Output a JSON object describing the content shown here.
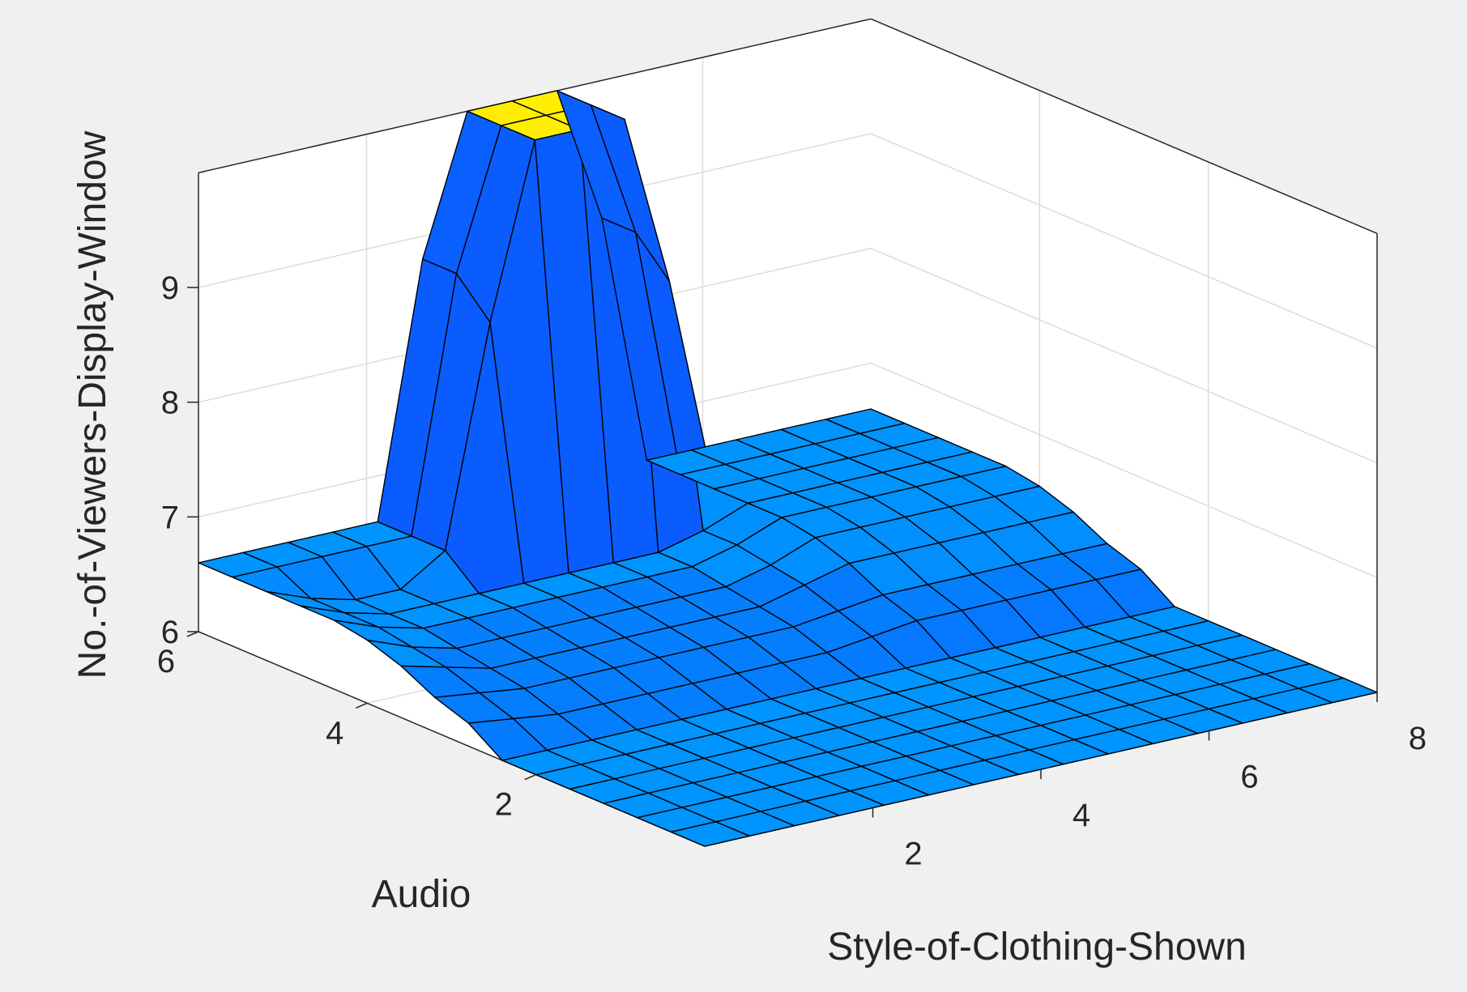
{
  "chart_data": {
    "type": "surface",
    "title": "",
    "xlabel": "Style-of-Clothing-Shown",
    "ylabel": "Audio",
    "zlabel": "No.-of-Viewers-Display-Window",
    "xlim": [
      0,
      8
    ],
    "ylim": [
      0,
      6
    ],
    "zlim": [
      6,
      10
    ],
    "x_ticks": [
      "2",
      "4",
      "6",
      "8"
    ],
    "y_ticks": [
      "2",
      "4",
      "6"
    ],
    "z_ticks": [
      "6",
      "7",
      "8",
      "9"
    ],
    "grid": true,
    "x": [
      0,
      0.533,
      1.067,
      1.6,
      2.133,
      2.667,
      3.2,
      3.733,
      4.267,
      4.8,
      5.333,
      5.867,
      6.4,
      6.933,
      7.467,
      8
    ],
    "y": [
      0,
      0.4,
      0.8,
      1.2,
      1.6,
      2.0,
      2.4,
      2.8,
      3.2,
      3.6,
      4.0,
      4.4,
      4.8,
      5.2,
      5.6,
      6.0
    ],
    "z": [
      [
        6.0,
        6.0,
        6.0,
        6.0,
        6.0,
        6.0,
        6.0,
        6.0,
        6.0,
        6.0,
        6.0,
        6.0,
        6.0,
        6.0,
        6.0,
        6.0
      ],
      [
        6.0,
        6.0,
        6.0,
        6.0,
        6.0,
        6.0,
        6.0,
        6.0,
        6.0,
        6.0,
        6.0,
        6.0,
        6.0,
        6.0,
        6.0,
        6.0
      ],
      [
        6.0,
        6.0,
        6.0,
        6.0,
        6.0,
        6.0,
        6.0,
        6.0,
        6.0,
        6.0,
        6.0,
        6.0,
        6.0,
        6.0,
        6.0,
        6.0
      ],
      [
        6.0,
        6.0,
        6.0,
        6.0,
        6.0,
        6.0,
        6.0,
        6.0,
        6.0,
        6.0,
        6.0,
        6.0,
        6.0,
        6.0,
        6.0,
        6.0
      ],
      [
        6.0,
        6.0,
        6.0,
        6.0,
        6.0,
        6.0,
        6.0,
        6.0,
        6.0,
        6.0,
        6.0,
        6.0,
        6.0,
        6.0,
        6.0,
        6.0
      ],
      [
        6.0,
        6.0,
        6.0,
        6.0,
        6.0,
        6.0,
        6.0,
        6.0,
        6.0,
        6.0,
        6.0,
        6.0,
        6.0,
        6.0,
        6.0,
        6.0
      ],
      [
        6.0,
        6.0,
        6.0,
        6.0,
        6.0,
        6.0,
        6.0,
        6.0,
        6.0,
        6.0,
        6.0,
        6.0,
        6.0,
        6.0,
        6.0,
        6.0
      ],
      [
        6.2,
        6.15,
        6.1,
        6.1,
        6.1,
        6.1,
        6.1,
        6.1,
        6.1,
        6.15,
        6.2,
        6.2,
        6.2,
        6.2,
        6.2,
        6.2
      ],
      [
        6.3,
        6.25,
        6.2,
        6.2,
        6.2,
        6.2,
        6.2,
        6.2,
        6.2,
        6.25,
        6.3,
        6.3,
        6.3,
        6.3,
        6.3,
        6.3
      ],
      [
        6.45,
        6.35,
        6.25,
        6.25,
        6.25,
        6.25,
        6.25,
        6.25,
        6.25,
        6.35,
        6.45,
        6.45,
        6.45,
        6.45,
        6.45,
        6.45
      ],
      [
        6.55,
        6.4,
        6.3,
        6.3,
        6.3,
        6.3,
        6.3,
        6.3,
        6.3,
        6.4,
        6.55,
        6.55,
        6.55,
        6.55,
        6.55,
        6.55
      ],
      [
        6.6,
        6.45,
        6.35,
        6.35,
        6.35,
        6.35,
        6.35,
        6.35,
        6.35,
        6.45,
        6.6,
        6.6,
        6.6,
        6.6,
        6.6,
        6.6
      ],
      [
        6.6,
        6.45,
        6.35,
        6.35,
        6.35,
        6.35,
        6.35,
        6.35,
        6.35,
        6.45,
        6.6,
        6.6,
        6.6,
        6.6,
        6.6,
        6.6
      ],
      [
        6.6,
        6.45,
        6.35,
        6.35,
        6.6,
        8.5,
        10.0,
        10.0,
        10.0,
        8.5,
        6.6,
        6.6,
        6.6,
        6.6,
        6.6,
        6.6
      ],
      [
        6.6,
        6.6,
        6.6,
        6.6,
        6.6,
        8.8,
        10.0,
        10.0,
        10.0,
        8.8,
        6.6,
        6.6,
        6.6,
        6.6,
        6.6,
        6.6
      ],
      [
        6.6,
        6.6,
        6.6,
        6.6,
        6.6,
        8.8,
        10.0,
        10.0,
        10.0,
        8.8,
        6.6,
        6.6,
        6.6,
        6.6,
        6.6,
        6.6
      ]
    ],
    "colors": {
      "figure_bg": "#f0f0f0",
      "axes_bg": "#ffffff",
      "grid": "#dcdcdc",
      "axes_line": "#262626",
      "edge": "#000000",
      "surface_low": "#0b5cff",
      "surface_mid": "#0094ff",
      "surface_high": "#ffee00"
    }
  }
}
